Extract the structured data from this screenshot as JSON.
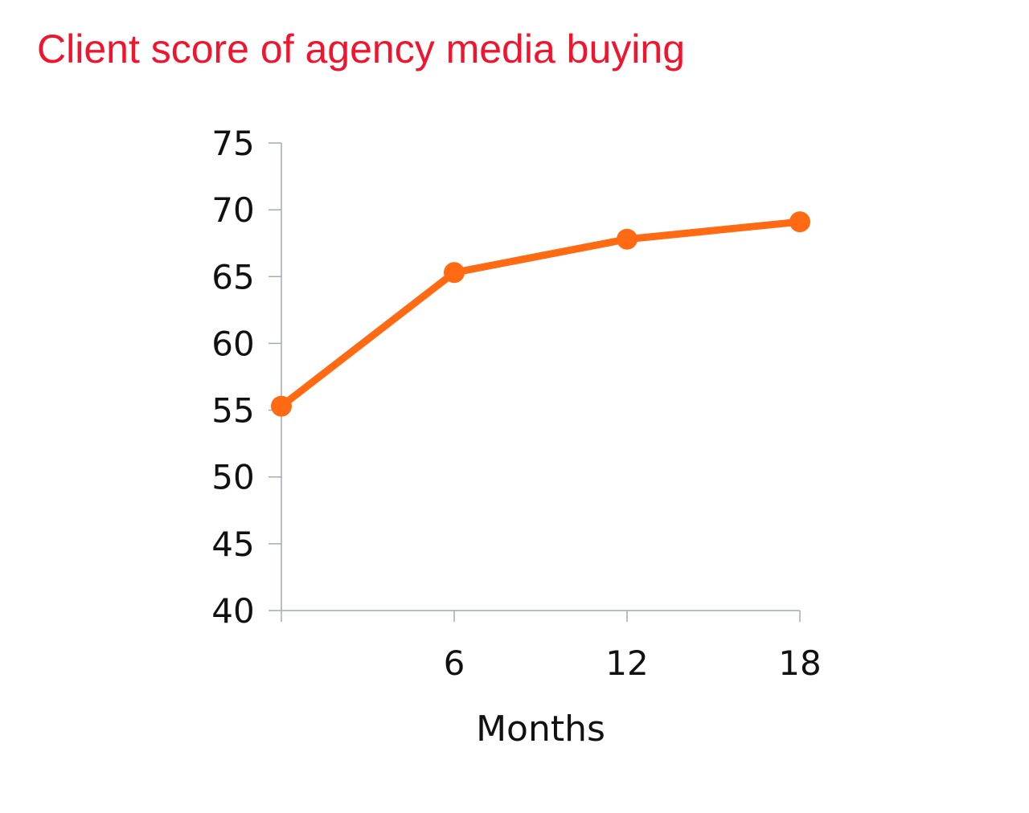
{
  "slide": {
    "title": "Client score of agency media buying",
    "title_color": "#F0142E"
  },
  "chart_data": {
    "type": "line",
    "title": "Client score of agency media buying",
    "xlabel": "Months",
    "ylabel": "",
    "x": [
      0,
      6,
      12,
      18
    ],
    "x_tick_labels": [
      "",
      "6",
      "12",
      "18"
    ],
    "xlim": [
      0,
      18
    ],
    "ylim": [
      40,
      75
    ],
    "y_ticks": [
      40,
      45,
      50,
      55,
      60,
      65,
      70,
      75
    ],
    "grid": false,
    "legend": "none",
    "series": [
      {
        "values": [
          55.3,
          65.3,
          67.8,
          69.1
        ],
        "color": "#FF6A13",
        "markers": true
      }
    ],
    "axis_color": "#A3AAB2",
    "text_color": "#111111"
  }
}
